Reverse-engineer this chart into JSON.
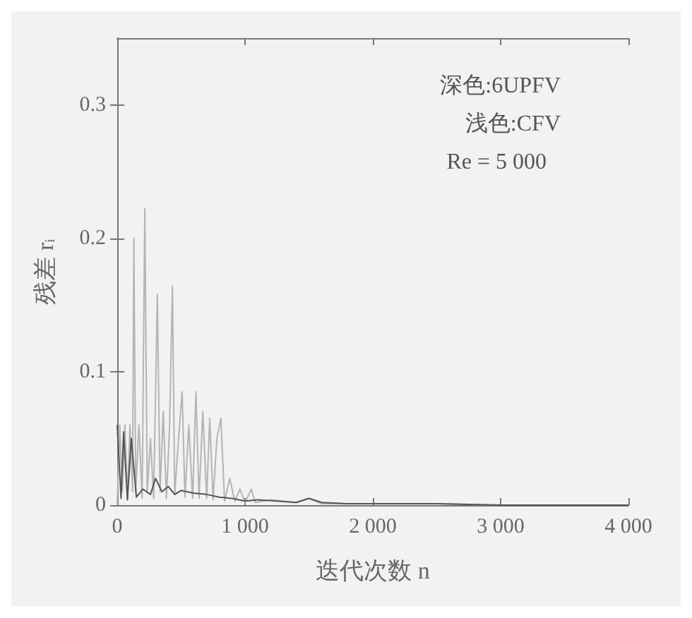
{
  "chart_data": {
    "type": "line",
    "xlabel": "迭代次数 n",
    "ylabel": "残差 r$_{i}$",
    "annotations": [
      "深色:6UPFV",
      "浅色:CFV",
      "Re = 5 000"
    ],
    "xlim": [
      0,
      4000
    ],
    "xticks": [
      {
        "value": 0,
        "label": "0"
      },
      {
        "value": 1000,
        "label": "1 000"
      },
      {
        "value": 2000,
        "label": "2 000"
      },
      {
        "value": 3000,
        "label": "3 000"
      },
      {
        "value": 4000,
        "label": "4 000"
      }
    ],
    "ylim": [
      0,
      0.35
    ],
    "yticks": [
      0,
      0.1,
      0.2,
      0.3
    ],
    "grid": false,
    "marker": "none",
    "line_style": "solid",
    "series": [
      {
        "color": "#b4b4b4",
        "x": [
          0,
          20,
          40,
          60,
          80,
          100,
          120,
          130,
          145,
          170,
          195,
          216,
          235,
          260,
          285,
          314,
          335,
          360,
          385,
          410,
          432,
          450,
          480,
          508,
          530,
          560,
          590,
          616,
          640,
          670,
          700,
          724,
          750,
          780,
          811,
          840,
          880,
          920,
          960,
          1000,
          1049,
          1080,
          1200,
          1400,
          1500,
          1600,
          2000,
          2500,
          3000,
          4000
        ],
        "values": [
          0,
          0.06,
          0.01,
          0.06,
          0.005,
          0.06,
          0.01,
          0.2,
          0.01,
          0.06,
          0.005,
          0.222,
          0.01,
          0.05,
          0.005,
          0.158,
          0.01,
          0.07,
          0.005,
          0.06,
          0.164,
          0.008,
          0.05,
          0.085,
          0.006,
          0.06,
          0.005,
          0.085,
          0.005,
          0.07,
          0.005,
          0.065,
          0.004,
          0.05,
          0.065,
          0.003,
          0.02,
          0.003,
          0.012,
          0.002,
          0.012,
          0.002,
          0.004,
          0.002,
          0.005,
          0.001,
          0.001,
          0.001,
          0,
          0
        ]
      },
      {
        "color": "#555555",
        "x": [
          0,
          30,
          50,
          80,
          110,
          150,
          200,
          260,
          300,
          350,
          400,
          450,
          500,
          600,
          700,
          800,
          900,
          1000,
          1100,
          1250,
          1400,
          1500,
          1600,
          1800,
          2000,
          2500,
          3000,
          4000
        ],
        "values": [
          0.06,
          0.005,
          0.055,
          0.004,
          0.05,
          0.006,
          0.012,
          0.008,
          0.02,
          0.01,
          0.014,
          0.008,
          0.011,
          0.009,
          0.008,
          0.006,
          0.005,
          0.003,
          0.004,
          0.003,
          0.002,
          0.005,
          0.002,
          0.001,
          0.001,
          0.001,
          0,
          0
        ]
      }
    ]
  }
}
